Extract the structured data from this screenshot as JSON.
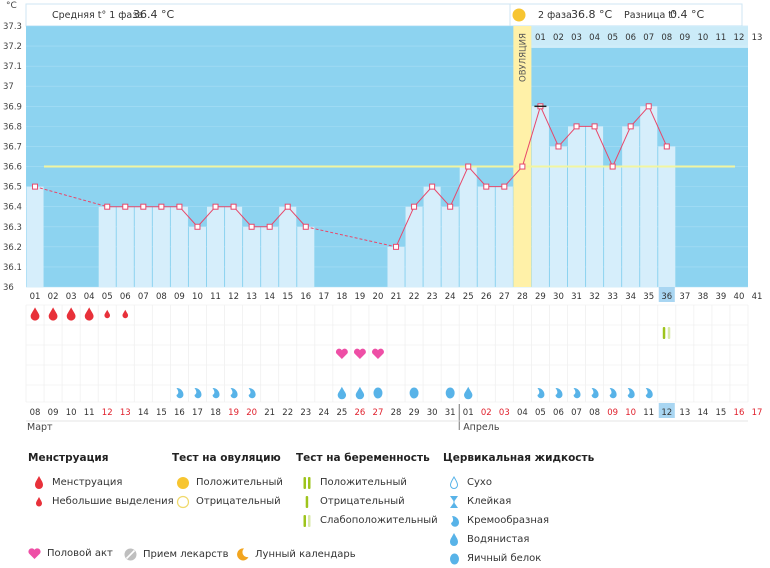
{
  "header": {
    "phase1_label": "Средняя t° 1 фаза",
    "phase1_value": "36.4 °C",
    "phase2_label": "2 фаза",
    "phase2_value": "36.8 °C",
    "diff_label": "Разница t°",
    "diff_value": "0.4 °C"
  },
  "y_unit": "°C",
  "ovulation_label": "ОВУЛЯЦИЯ",
  "month_labels": [
    "Март",
    "Апрель"
  ],
  "chart_data": {
    "type": "line",
    "ylim": [
      36.0,
      37.3
    ],
    "yticks": [
      "36",
      "36.1",
      "36.2",
      "36.3",
      "36.4",
      "36.5",
      "36.6",
      "36.7",
      "36.8",
      "36.9",
      "37",
      "37.1",
      "37.2",
      "37.3"
    ],
    "cycle_days": [
      "01",
      "02",
      "03",
      "04",
      "05",
      "06",
      "07",
      "08",
      "09",
      "10",
      "11",
      "12",
      "13",
      "14",
      "15",
      "16",
      "17",
      "18",
      "19",
      "20",
      "21",
      "22",
      "23",
      "24",
      "25",
      "26",
      "27",
      "28",
      "29",
      "30",
      "31",
      "32",
      "33",
      "34",
      "35",
      "36",
      "37",
      "38",
      "39",
      "40",
      "41"
    ],
    "calendar_days": [
      "08",
      "09",
      "10",
      "11",
      "12",
      "13",
      "14",
      "15",
      "16",
      "17",
      "18",
      "19",
      "20",
      "21",
      "22",
      "23",
      "24",
      "25",
      "26",
      "27",
      "28",
      "29",
      "30",
      "31",
      "01",
      "02",
      "03",
      "04",
      "05",
      "06",
      "07",
      "08",
      "09",
      "10",
      "11",
      "12",
      "13",
      "14",
      "15",
      "16",
      "17"
    ],
    "red_calendar_days": [
      5,
      6,
      12,
      13,
      19,
      20,
      26,
      27,
      33,
      34,
      40,
      41
    ],
    "temperatures": [
      36.5,
      null,
      null,
      null,
      36.4,
      36.4,
      36.4,
      36.4,
      36.4,
      36.3,
      36.4,
      36.4,
      36.3,
      36.3,
      36.4,
      36.3,
      null,
      null,
      null,
      null,
      36.2,
      36.4,
      36.5,
      36.4,
      36.6,
      36.5,
      36.5,
      36.6,
      36.9,
      36.7,
      36.8,
      36.8,
      36.6,
      36.8,
      36.9,
      36.7
    ],
    "coverline": 36.6,
    "ovulation_day": 28,
    "phase2_day_numbers": [
      "01",
      "02",
      "03",
      "04",
      "05",
      "06",
      "07",
      "08",
      "09",
      "10",
      "11",
      "12",
      "13"
    ],
    "current_day": 36,
    "menstruation": [
      {
        "day": 1,
        "kind": "heavy"
      },
      {
        "day": 2,
        "kind": "heavy"
      },
      {
        "day": 3,
        "kind": "heavy"
      },
      {
        "day": 4,
        "kind": "heavy"
      },
      {
        "day": 5,
        "kind": "light"
      },
      {
        "day": 6,
        "kind": "light"
      }
    ],
    "pregnancy_test": [
      {
        "day": 36,
        "kind": "weak"
      }
    ],
    "intercourse_days": [
      18,
      19,
      20
    ],
    "cervical_fluid": [
      {
        "day": 9,
        "kind": "creamy"
      },
      {
        "day": 10,
        "kind": "creamy"
      },
      {
        "day": 11,
        "kind": "creamy"
      },
      {
        "day": 12,
        "kind": "creamy"
      },
      {
        "day": 13,
        "kind": "creamy"
      },
      {
        "day": 18,
        "kind": "watery"
      },
      {
        "day": 19,
        "kind": "watery"
      },
      {
        "day": 20,
        "kind": "eggwhite"
      },
      {
        "day": 22,
        "kind": "eggwhite"
      },
      {
        "day": 24,
        "kind": "eggwhite"
      },
      {
        "day": 25,
        "kind": "watery"
      },
      {
        "day": 29,
        "kind": "creamy"
      },
      {
        "day": 30,
        "kind": "creamy"
      },
      {
        "day": 31,
        "kind": "creamy"
      },
      {
        "day": 32,
        "kind": "creamy"
      },
      {
        "day": 33,
        "kind": "creamy"
      },
      {
        "day": 34,
        "kind": "creamy"
      },
      {
        "day": 35,
        "kind": "creamy"
      }
    ]
  },
  "legend": {
    "menstruation": {
      "title": "Менструация",
      "items": [
        "Менструация",
        "Небольшие выделения"
      ]
    },
    "ovulation_test": {
      "title": "Тест на овуляцию",
      "items": [
        "Положительный",
        "Отрицательный"
      ]
    },
    "pregnancy_test": {
      "title": "Тест на беременность",
      "items": [
        "Положительный",
        "Отрицательный",
        "Слабоположительный"
      ]
    },
    "cervical": {
      "title": "Цервикальная жидкость",
      "items": [
        "Сухо",
        "Клейкая",
        "Кремообразная",
        "Водянистая",
        "Яичный белок"
      ]
    },
    "bottom": [
      "Половой акт",
      "Прием лекарств",
      "Лунный календарь"
    ]
  },
  "colors": {
    "plot_bg": "#8dd3f0",
    "bar_fill": "#d6eefb",
    "line": "#e8476a",
    "coverline": "#f2f5a0",
    "ovulation_band": "#fff1a8",
    "drop_red": "#e8313a",
    "heart": "#ee4fa6",
    "drop_blue": "#58b3e8",
    "today": "#a9d6f2",
    "sun": "#f7c531"
  }
}
